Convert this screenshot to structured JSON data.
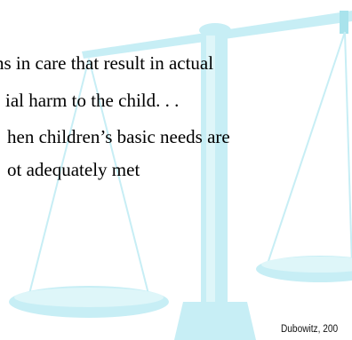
{
  "body": {
    "lines": [
      "ns in care that result in actual",
      "ial harm to the child. . .",
      "hen children’s basic needs are",
      "ot adequately met"
    ]
  },
  "citation": "Dubowitz, 200",
  "colors": {
    "scale_light": "#def6f9",
    "scale_mid": "#c7eef5",
    "scale_dark": "#a9e3ec"
  },
  "background_image": "balance-scale-watermark"
}
